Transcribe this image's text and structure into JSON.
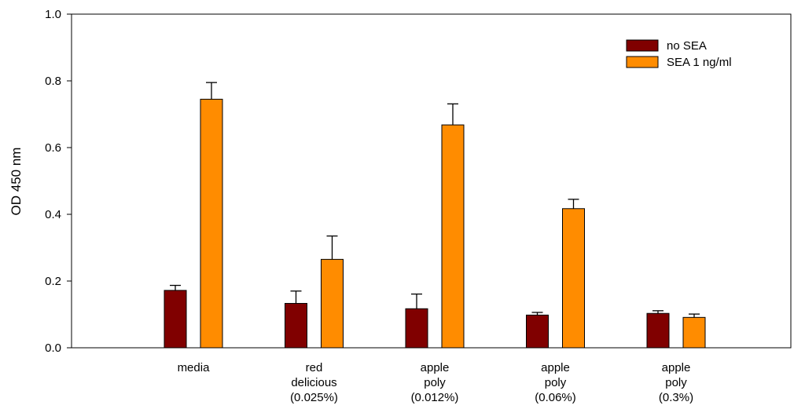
{
  "chart_data": {
    "type": "bar",
    "categories": [
      [
        "media"
      ],
      [
        "red",
        "delicious",
        "(0.025%)"
      ],
      [
        "apple",
        "poly",
        "(0.012%)"
      ],
      [
        "apple",
        "poly",
        "(0.06%)"
      ],
      [
        "apple",
        "poly",
        "(0.3%)"
      ]
    ],
    "series": [
      {
        "name": "no SEA",
        "color": "#800000",
        "values": [
          0.172,
          0.133,
          0.117,
          0.098,
          0.103
        ],
        "errors": [
          0.015,
          0.037,
          0.044,
          0.008,
          0.008
        ]
      },
      {
        "name": "SEA 1 ng/ml",
        "color": "#ff8c00",
        "values": [
          0.745,
          0.265,
          0.668,
          0.417,
          0.091
        ],
        "errors": [
          0.05,
          0.07,
          0.063,
          0.028,
          0.01
        ]
      }
    ],
    "xlabel": "",
    "ylabel": "OD 450 nm",
    "ylim": [
      0,
      1.0
    ],
    "yticks": [
      "0.0",
      "0.2",
      "0.4",
      "0.6",
      "0.8",
      "1.0"
    ],
    "ytick_values": [
      0,
      0.2,
      0.4,
      0.6,
      0.8,
      1.0
    ],
    "legend_position": "top-right",
    "grid": false
  }
}
